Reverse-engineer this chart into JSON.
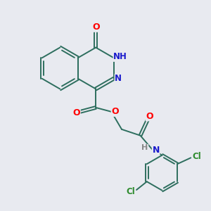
{
  "bg_color": "#e8eaf0",
  "bond_color": "#2d6e5e",
  "atom_colors": {
    "O": "#ff0000",
    "N": "#1a1acc",
    "H": "#888888",
    "Cl": "#2e8b2e",
    "C": "#2d6e5e"
  }
}
